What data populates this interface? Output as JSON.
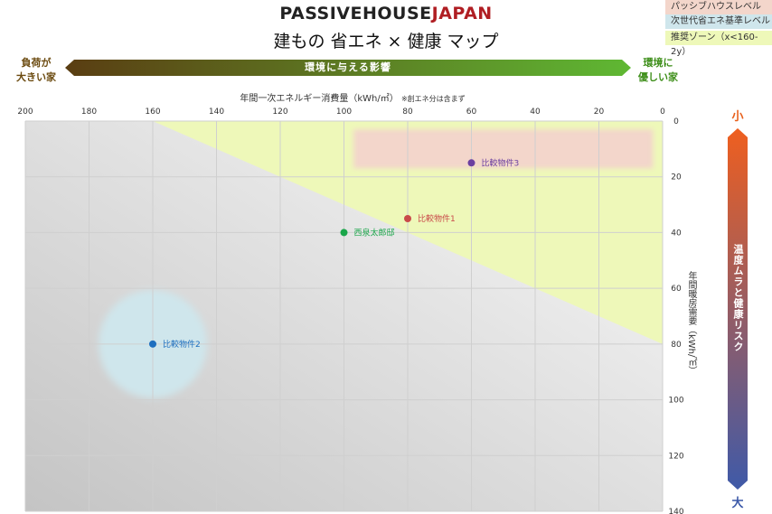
{
  "header": {
    "brand_part1": "PASSIVEHOUSE",
    "brand_part2": "JAPAN",
    "subtitle": "建もの 省エネ × 健康 マップ"
  },
  "legend": [
    {
      "label": "パッシブハウスレベル",
      "color": "#f3d6cb"
    },
    {
      "label": "次世代省エネ基準レベル",
      "color": "#cfe6ec"
    },
    {
      "label": "推奨ゾーン（x<160-2y）",
      "color": "#eef8b9"
    }
  ],
  "env_arrow": {
    "label": "環境に与える影響",
    "left_label": "負荷が\n大きい家",
    "right_label": "環境に\n優しい家",
    "left_color": "#5a3d12",
    "right_color": "#5fb833"
  },
  "risk_axis": {
    "top_label": "小",
    "bottom_label": "大",
    "label": "温度ムラと健康リスク",
    "top_color": "#ef5f1f",
    "bottom_color": "#3f5aa8"
  },
  "chart_data": {
    "type": "scatter",
    "xlabel": "年間一次エネルギー消費量（kWh/㎡）",
    "xlabel_note": "※創エネ分は含まず",
    "ylabel": "年間暖房需要（kWh/㎡）",
    "xlim": [
      200,
      0
    ],
    "ylim": [
      0,
      140
    ],
    "x_ticks": [
      200,
      180,
      160,
      140,
      120,
      100,
      80,
      60,
      40,
      20,
      0
    ],
    "y_ticks": [
      0,
      20,
      40,
      60,
      80,
      100,
      120,
      140
    ],
    "grid": true,
    "recommended_zone": {
      "rule": "x<160-2y",
      "color": "#eef8b9"
    },
    "passive_house_zone": {
      "x": [
        97,
        3
      ],
      "y": [
        3,
        17
      ],
      "color": "#f3d6cb"
    },
    "standard_zone": {
      "center_x": 160,
      "center_y": 80,
      "radius_x": 17,
      "color": "#cfe6ec"
    },
    "points": [
      {
        "label": "比較物件3",
        "x": 60,
        "y": 15,
        "color": "#6b3fa0"
      },
      {
        "label": "比較物件1",
        "x": 80,
        "y": 35,
        "color": "#c94a4a"
      },
      {
        "label": "西泉太郎邸",
        "x": 100,
        "y": 40,
        "color": "#1aa64a"
      },
      {
        "label": "比較物件2",
        "x": 160,
        "y": 80,
        "color": "#1e6fbf"
      }
    ]
  }
}
